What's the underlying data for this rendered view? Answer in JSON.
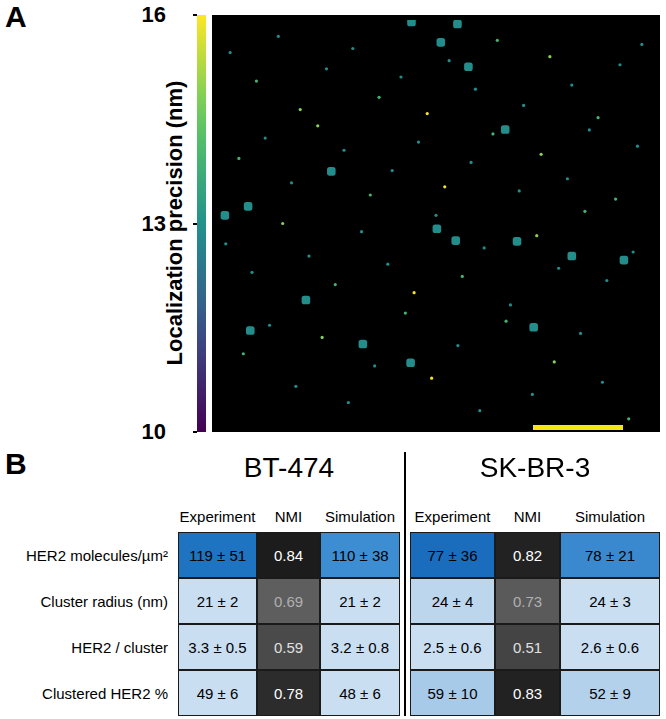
{
  "panels": [
    "A",
    "B"
  ],
  "chart_data": {
    "type": "scatter",
    "tick_labels": false,
    "grid": false,
    "xlim": [
      0,
      100
    ],
    "ylim": [
      0,
      100
    ],
    "colorbar": {
      "label": "Localization precision (nm)",
      "range": [
        10,
        16
      ],
      "ticks": [
        10,
        13,
        16
      ]
    },
    "series": [
      {
        "marker": "point",
        "x": [
          3,
          9,
          14,
          19,
          25,
          31,
          37,
          42,
          48,
          53,
          59,
          64,
          70,
          76,
          81,
          87,
          92,
          97,
          5,
          11,
          17,
          23,
          29,
          35,
          40,
          46,
          52,
          58,
          63,
          69,
          74,
          80,
          85,
          91,
          96,
          2,
          8,
          15,
          21,
          27,
          33,
          39,
          45,
          50,
          56,
          61,
          67,
          73,
          78,
          84,
          89,
          95,
          6,
          12,
          18,
          24,
          30,
          36,
          43,
          49,
          55,
          60,
          66,
          72,
          77,
          83,
          88,
          94
        ],
        "values": [
          92,
          85,
          96,
          78,
          88,
          93,
          81,
          86,
          77,
          90,
          83,
          95,
          79,
          91,
          84,
          76,
          89,
          94,
          66,
          71,
          60,
          74,
          68,
          57,
          63,
          70,
          59,
          65,
          72,
          58,
          67,
          61,
          73,
          56,
          69,
          45,
          38,
          50,
          42,
          35,
          48,
          40,
          33,
          52,
          37,
          44,
          30,
          47,
          39,
          53,
          36,
          43,
          18,
          25,
          10,
          22,
          6,
          15,
          28,
          12,
          20,
          4,
          26,
          8,
          16,
          23,
          11,
          2
        ],
        "precision": [
          12,
          13,
          12,
          14,
          12,
          12,
          13,
          12,
          15,
          12,
          12,
          13,
          12,
          14,
          12,
          13,
          12,
          12,
          13,
          12,
          12,
          14,
          12,
          13,
          12,
          12,
          15,
          12,
          13,
          12,
          14,
          12,
          12,
          13,
          12,
          12,
          12,
          14,
          12,
          13,
          12,
          12,
          15,
          12,
          13,
          12,
          12,
          14,
          12,
          13,
          12,
          12,
          13,
          12,
          12,
          14,
          12,
          12,
          13,
          15,
          12,
          12,
          13,
          12,
          14,
          12,
          12,
          13
        ]
      },
      {
        "marker": "cluster",
        "x": [
          44.4,
          54.9,
          51.1,
          57.4,
          65.8,
          26.1,
          7.1,
          50.2,
          54.5,
          68.5,
          81.0,
          92.9,
          20.3,
          7.6,
          33.3,
          44.2,
          72.3,
          1.8
        ],
        "values": [
          99.5,
          99.0,
          94.5,
          88.5,
          73.1,
          62.8,
          54.2,
          48.7,
          45.8,
          45.6,
          42.0,
          41.0,
          31.2,
          23.7,
          20.4,
          15.8,
          24.5,
          52.0
        ],
        "precision": [
          12,
          12,
          12,
          12,
          12,
          12,
          12,
          12,
          12,
          12,
          12,
          12,
          12,
          12,
          12,
          12,
          12,
          12
        ]
      }
    ]
  },
  "table": {
    "groups": [
      "BT-474",
      "SK-BR-3"
    ],
    "columns": [
      "Experiment",
      "NMI",
      "Simulation"
    ],
    "rows": [
      {
        "label": "HER2 molecules/µm²",
        "cells": [
          "119 ± 51",
          "0.84",
          "110 ± 38",
          "77 ± 36",
          "0.82",
          "78 ± 21"
        ]
      },
      {
        "label": "Cluster radius (nm)",
        "cells": [
          "21 ± 2",
          "0.69",
          "21 ± 2",
          "24 ± 4",
          "0.73",
          "24 ± 3"
        ]
      },
      {
        "label": "HER2 / cluster",
        "cells": [
          "3.3 ± 0.5",
          "0.59",
          "3.2 ± 0.8",
          "2.5 ± 0.6",
          "0.51",
          "2.6 ± 0.6"
        ]
      },
      {
        "label": "Clustered HER2 %",
        "cells": [
          "49 ± 6",
          "0.78",
          "48 ± 6",
          "59 ± 10",
          "0.83",
          "52 ± 9"
        ]
      }
    ]
  }
}
